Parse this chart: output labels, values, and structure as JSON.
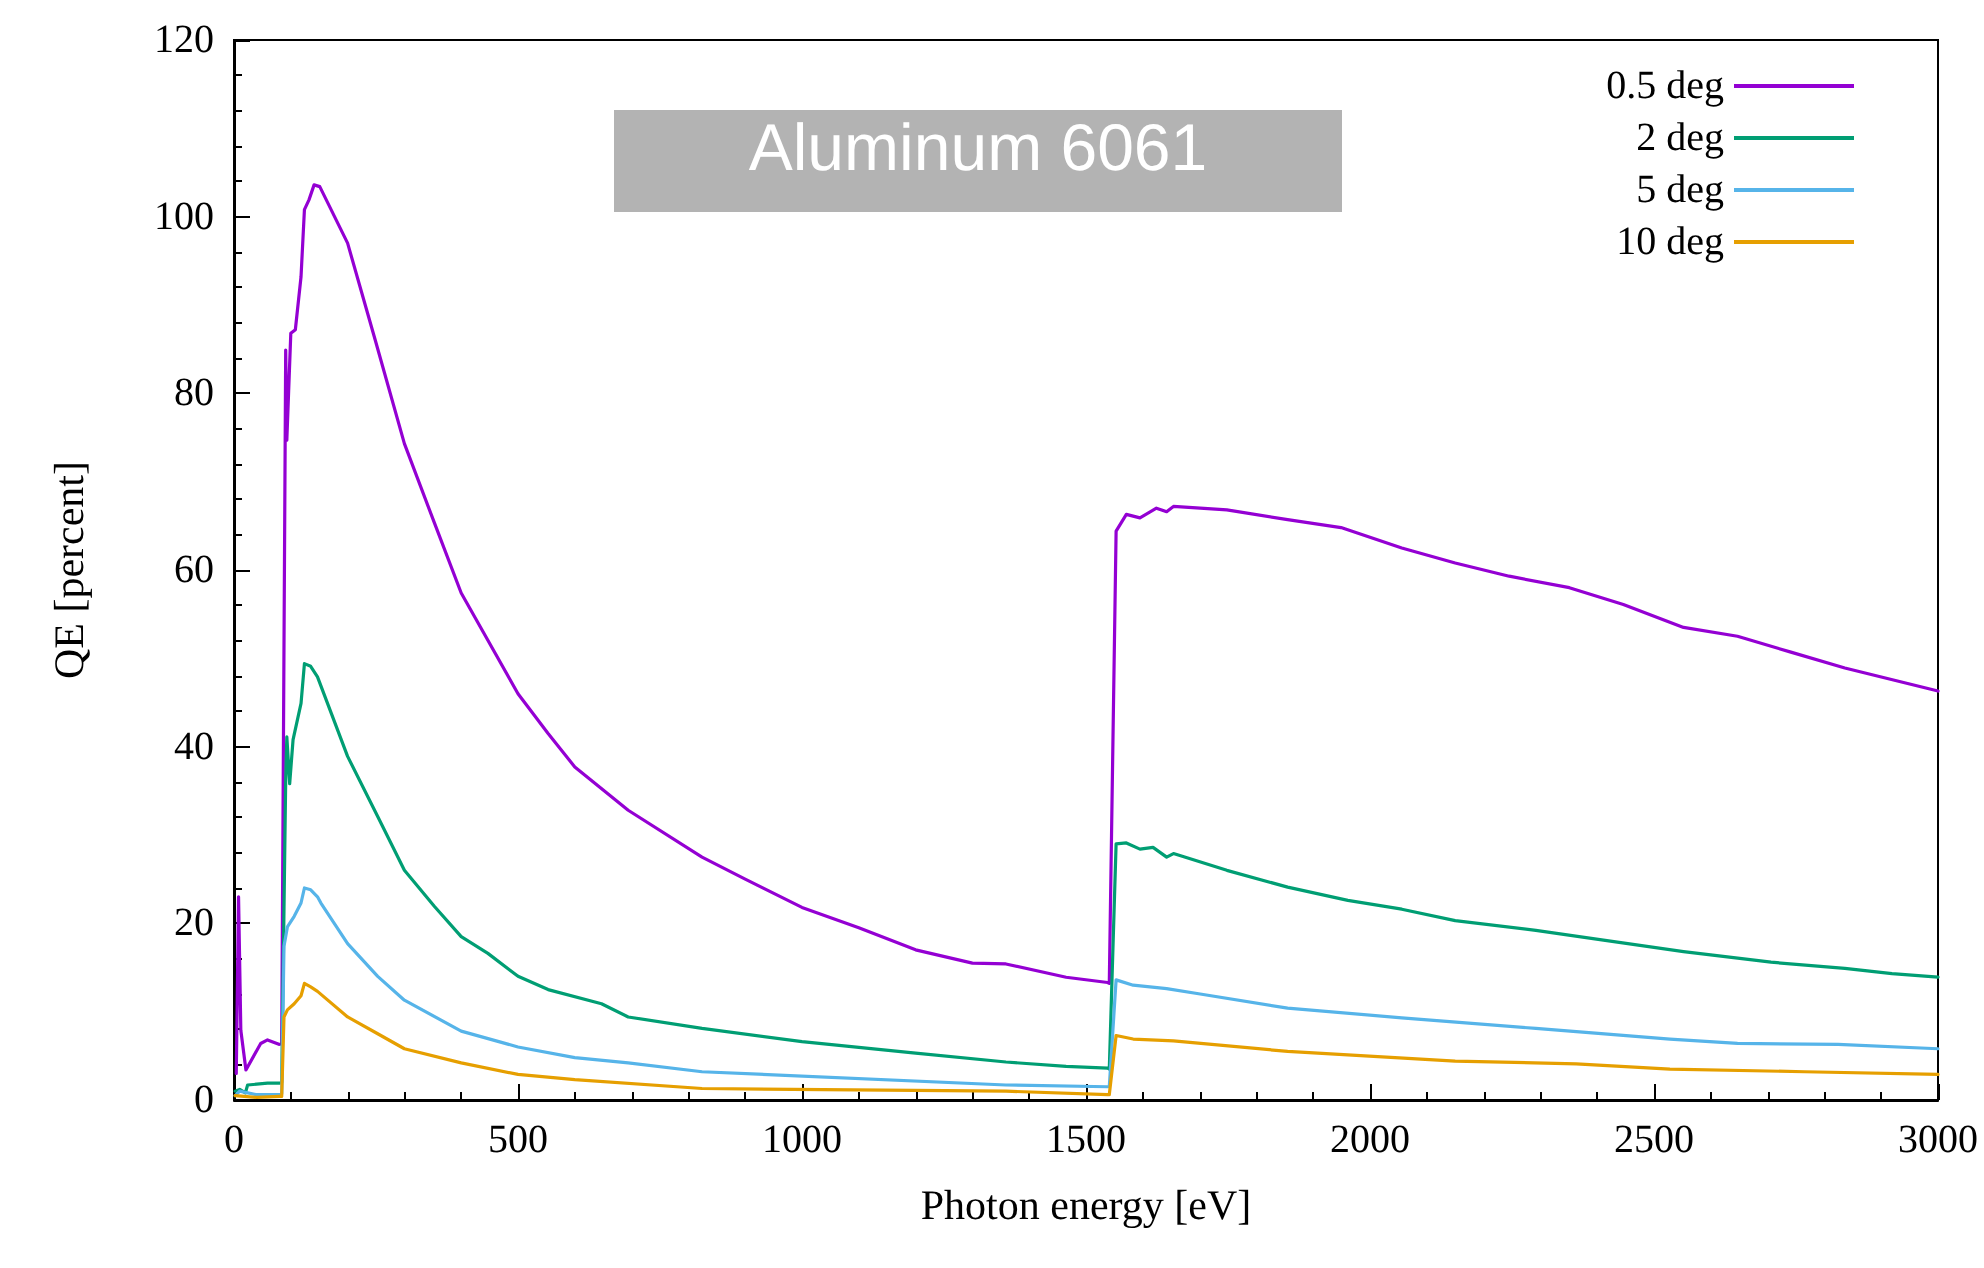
{
  "chart_data": {
    "type": "line",
    "xlabel": "Photon energy [eV]",
    "ylabel": "QE [percent]",
    "annotations": [
      "Aluminum 6061"
    ],
    "xlim": [
      0,
      3000
    ],
    "xticks": [
      0,
      500,
      1000,
      1500,
      2000,
      2500,
      3000
    ],
    "ylim": [
      0,
      120
    ],
    "yticks": [
      0,
      20,
      40,
      60,
      80,
      100,
      120
    ],
    "grid": false,
    "legend": "top right",
    "marker": "none",
    "line_style": "solid",
    "series": [
      {
        "name": "0.5 deg",
        "color": "#9400d3",
        "x": [
          4,
          8,
          12,
          21,
          47,
          59,
          79,
          84,
          91,
          93,
          100,
          108,
          118,
          124,
          132,
          141,
          151,
          200,
          247,
          300,
          353,
          400,
          500,
          553,
          600,
          694,
          824,
          900,
          1000,
          1100,
          1200,
          1300,
          1359,
          1465,
          1538,
          1541,
          1553,
          1571,
          1595,
          1624,
          1642,
          1654,
          1748,
          1855,
          1949,
          2056,
          2150,
          2245,
          2351,
          2446,
          2552,
          2647,
          2741,
          2836,
          3000
        ],
        "values": [
          3,
          23,
          7.9,
          3.4,
          6.4,
          6.8,
          6.3,
          6.4,
          84.9,
          74.7,
          86.8,
          87.2,
          93.2,
          100.8,
          101.9,
          103.6,
          103.4,
          97,
          86.4,
          74.3,
          65.3,
          57.4,
          46,
          41.5,
          37.7,
          32.8,
          27.5,
          25,
          21.8,
          19.5,
          17,
          15.5,
          15.4,
          13.9,
          13.3,
          13.2,
          64.4,
          66.3,
          65.9,
          67,
          66.6,
          67.2,
          66.8,
          65.7,
          64.8,
          62.5,
          60.8,
          59.3,
          58,
          56.1,
          53.5,
          52.5,
          50.7,
          48.9,
          46.3
        ]
      },
      {
        "name": "2 deg",
        "color": "#009e73",
        "x": [
          2,
          10,
          20,
          24,
          59,
          80,
          84,
          91,
          93,
          98,
          104,
          118,
          124,
          135,
          147,
          200,
          253,
          300,
          353,
          400,
          447,
          500,
          553,
          647,
          694,
          824,
          1000,
          1200,
          1359,
          1465,
          1538,
          1541,
          1553,
          1571,
          1595,
          1618,
          1642,
          1654,
          1748,
          1855,
          1961,
          2056,
          2150,
          2292,
          2411,
          2552,
          2706,
          2836,
          2919,
          3000
        ],
        "values": [
          1,
          1.2,
          0.8,
          1.7,
          1.9,
          1.9,
          2,
          36.2,
          41.1,
          35.8,
          40.8,
          44.9,
          49.4,
          49.1,
          47.9,
          38.9,
          32.1,
          26,
          21.9,
          18.5,
          16.6,
          14,
          12.5,
          10.9,
          9.4,
          8.1,
          6.6,
          5.3,
          4.3,
          3.8,
          3.6,
          3.5,
          29,
          29.1,
          28.4,
          28.6,
          27.5,
          27.9,
          26,
          24.1,
          22.6,
          21.6,
          20.3,
          19.2,
          18.1,
          16.8,
          15.6,
          14.9,
          14.3,
          13.9
        ]
      },
      {
        "name": "5 deg",
        "color": "#56b4e9",
        "x": [
          2,
          10,
          40,
          80,
          84,
          88,
          94,
          106,
          118,
          124,
          135,
          147,
          153,
          200,
          253,
          300,
          400,
          500,
          600,
          694,
          824,
          1359,
          1538,
          1541,
          1553,
          1583,
          1642,
          1701,
          1855,
          2056,
          2292,
          2528,
          2647,
          2824,
          3000
        ],
        "values": [
          0.5,
          1,
          0.6,
          0.6,
          0.7,
          17.4,
          19.6,
          20.8,
          22.3,
          24,
          23.8,
          23,
          22.3,
          17.7,
          14,
          11.3,
          7.8,
          6,
          4.8,
          4.2,
          3.2,
          1.7,
          1.5,
          1.5,
          13.6,
          13,
          12.6,
          12,
          10.4,
          9.3,
          8.1,
          6.9,
          6.4,
          6.3,
          5.8
        ]
      },
      {
        "name": "10 deg",
        "color": "#e69f00",
        "x": [
          2,
          40,
          80,
          84,
          88,
          94,
          106,
          118,
          124,
          135,
          147,
          200,
          253,
          300,
          400,
          500,
          600,
          824,
          1359,
          1538,
          1541,
          1553,
          1583,
          1654,
          1855,
          2150,
          2363,
          2528,
          2765,
          3000
        ],
        "values": [
          0.5,
          0.3,
          0.4,
          0.4,
          9.4,
          10.2,
          10.9,
          11.8,
          13.2,
          12.8,
          12.3,
          9.4,
          7.5,
          5.8,
          4.2,
          2.9,
          2.3,
          1.3,
          1,
          0.6,
          0.6,
          7.3,
          6.9,
          6.7,
          5.5,
          4.4,
          4.1,
          3.5,
          3.2,
          2.9
        ]
      }
    ]
  }
}
